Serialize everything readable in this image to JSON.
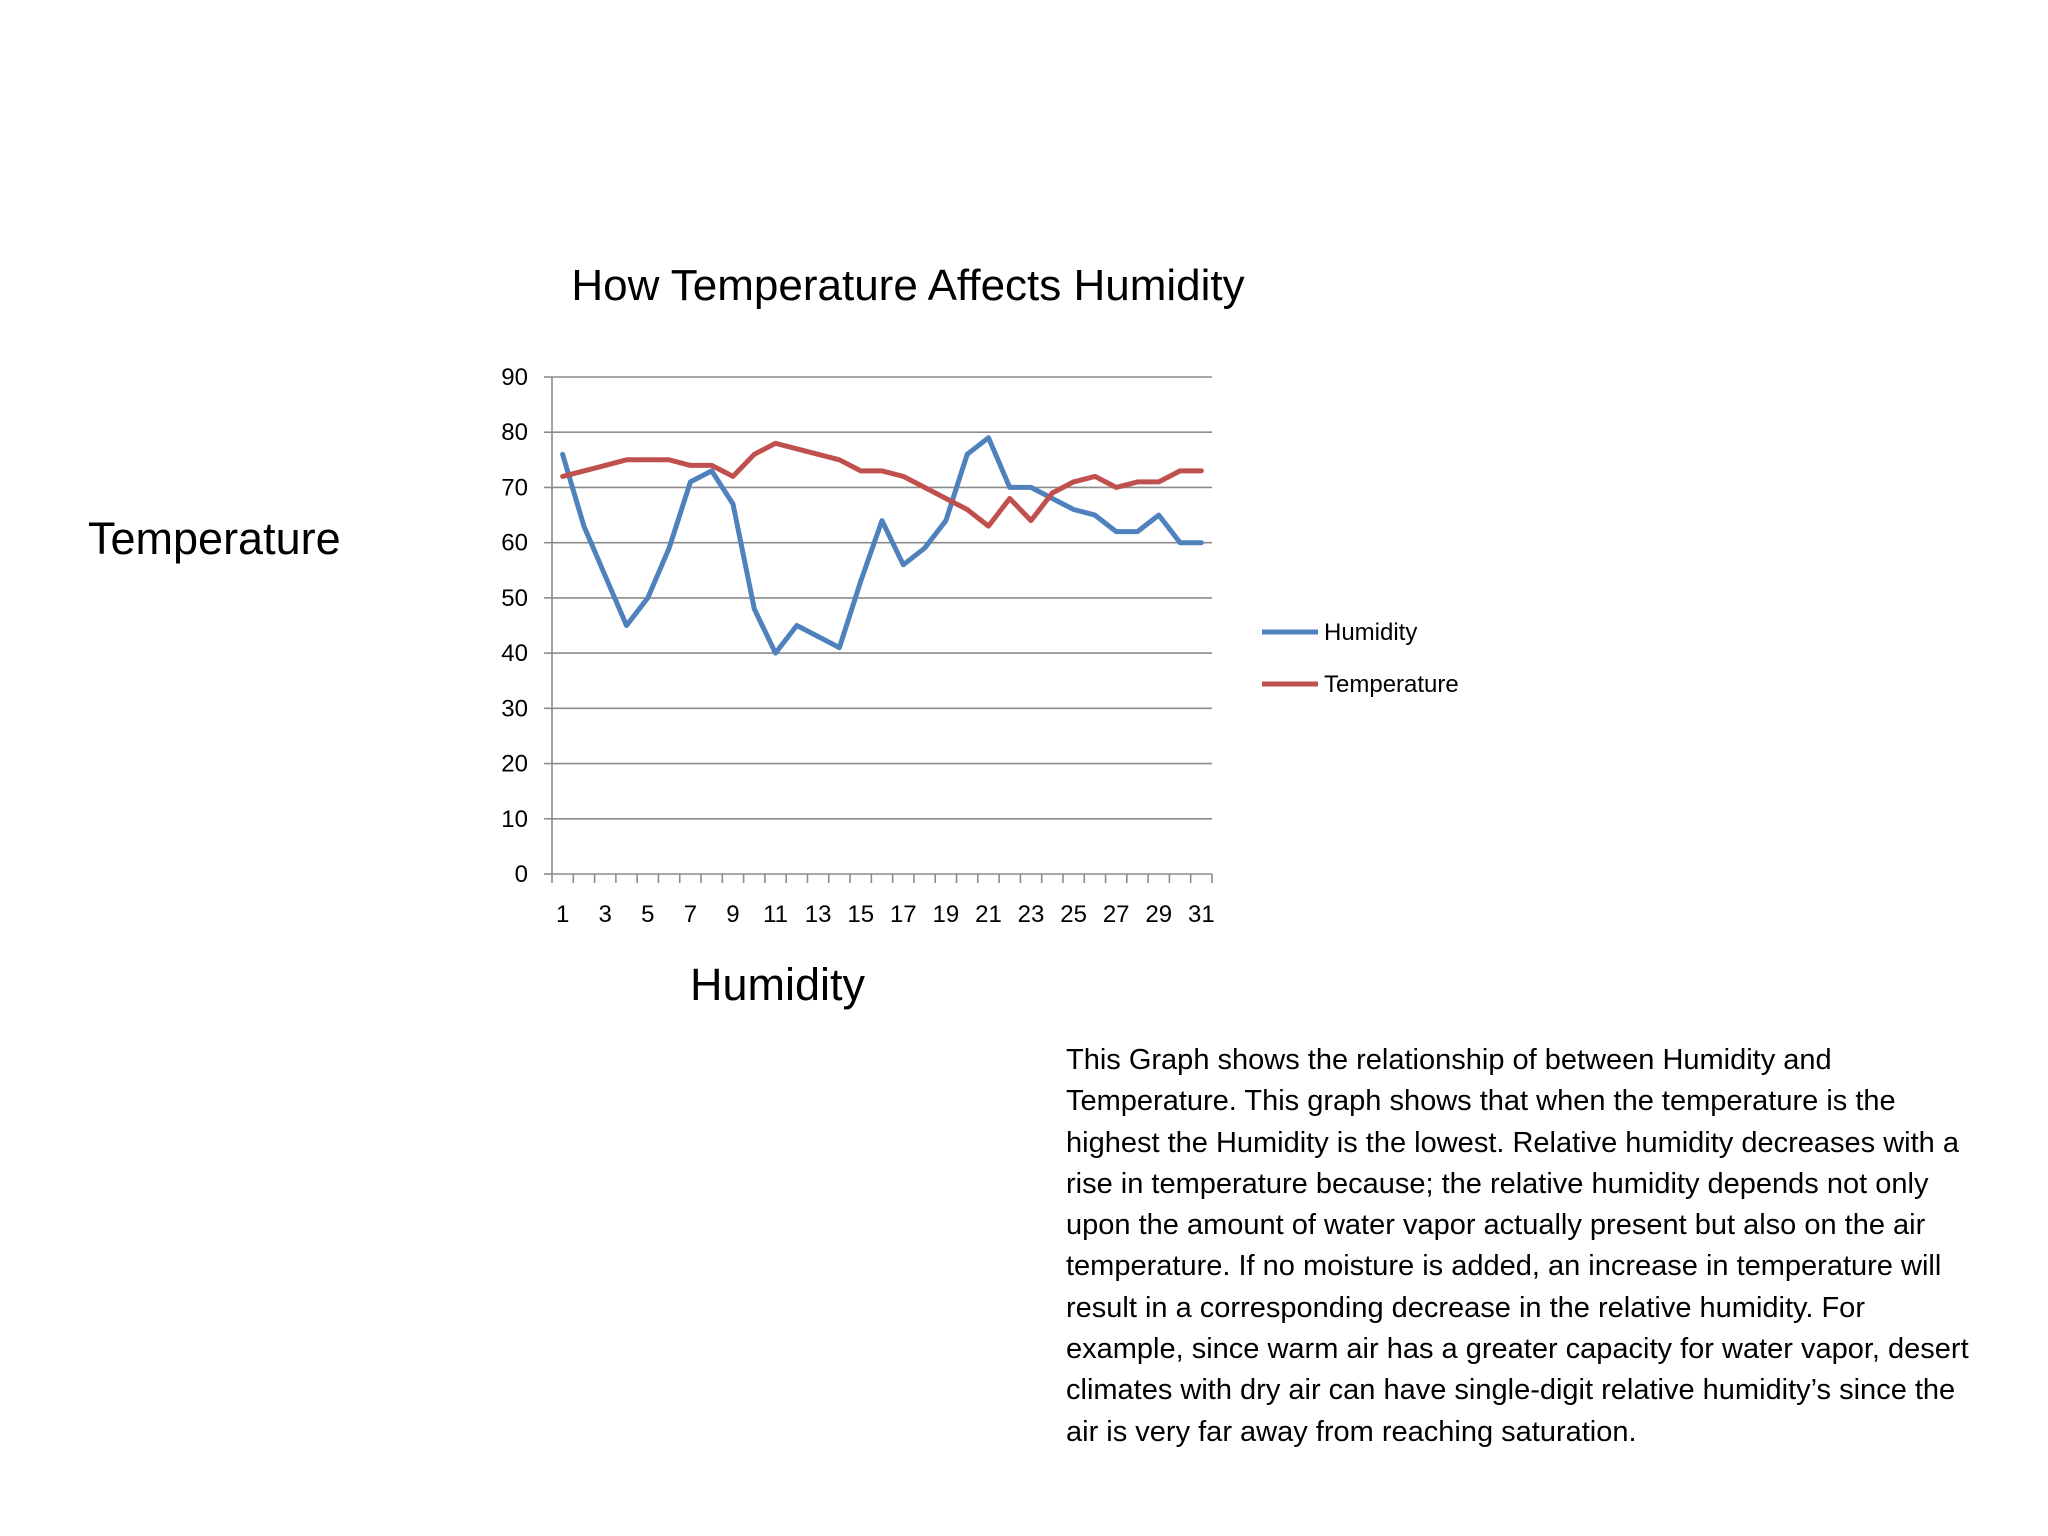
{
  "labels": {
    "side_title": "Temperature",
    "bottom_title": "Humidity"
  },
  "description": "This Graph shows the relationship of between Humidity and Temperature.  This graph shows that when the temperature is the highest the Humidity is the lowest.  Relative humidity decreases with a rise in temperature because; the relative humidity depends not only upon the amount of water vapor actually present but also on the air temperature.  If no moisture is added, an increase in temperature will result in a corresponding decrease in the relative humidity.  For example, since warm air has a greater capacity for water vapor, desert climates with dry air can have single-digit relative humidity’s since the air is very far away from reaching saturation.",
  "colors": {
    "humidity": "#4F81BD",
    "temperature": "#C0504D",
    "grid": "#8C8C8C",
    "axis": "#8C8C8C",
    "text": "#000000"
  },
  "chart_data": {
    "type": "line",
    "title": "How Temperature Affects Humidity",
    "xlabel": "",
    "ylabel": "",
    "x": [
      1,
      2,
      3,
      4,
      5,
      6,
      7,
      8,
      9,
      10,
      11,
      12,
      13,
      14,
      15,
      16,
      17,
      18,
      19,
      20,
      21,
      22,
      23,
      24,
      25,
      26,
      27,
      28,
      29,
      30,
      31
    ],
    "x_tick_labels": [
      "1",
      "3",
      "5",
      "7",
      "9",
      "11",
      "13",
      "15",
      "17",
      "19",
      "21",
      "23",
      "25",
      "27",
      "29",
      "31"
    ],
    "ylim": [
      0,
      90
    ],
    "y_ticks": [
      0,
      10,
      20,
      30,
      40,
      50,
      60,
      70,
      80,
      90
    ],
    "grid": true,
    "legend_position": "right",
    "series": [
      {
        "name": "Humidity",
        "values": [
          76,
          63,
          54,
          45,
          50,
          59,
          71,
          73,
          67,
          48,
          40,
          45,
          43,
          41,
          53,
          64,
          56,
          59,
          64,
          76,
          79,
          70,
          70,
          68,
          66,
          65,
          62,
          62,
          65,
          60,
          60
        ]
      },
      {
        "name": "Temperature",
        "values": [
          72,
          73,
          74,
          75,
          75,
          75,
          74,
          74,
          72,
          76,
          78,
          77,
          76,
          75,
          73,
          73,
          72,
          70,
          68,
          66,
          63,
          68,
          64,
          69,
          71,
          72,
          70,
          71,
          71,
          73,
          73
        ]
      }
    ]
  }
}
